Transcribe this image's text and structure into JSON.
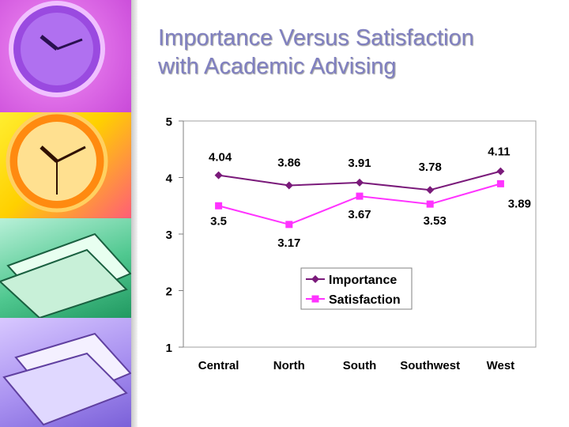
{
  "slide": {
    "title_line1": "Importance Versus Satisfaction",
    "title_line2": "with Academic Advising"
  },
  "colors": {
    "importance": "#7a1a7a",
    "satisfaction": "#ff33ff",
    "title": "#8080c0"
  },
  "chart_data": {
    "type": "line",
    "categories": [
      "Central",
      "North",
      "South",
      "Southwest",
      "West"
    ],
    "series": [
      {
        "name": "Importance",
        "values": [
          4.04,
          3.86,
          3.91,
          3.78,
          4.11
        ]
      },
      {
        "name": "Satisfaction",
        "values": [
          3.5,
          3.17,
          3.67,
          3.53,
          3.89
        ]
      }
    ],
    "ylim": [
      1,
      5
    ],
    "yticks": [
      1,
      2,
      3,
      4,
      5
    ],
    "legend": "center-right",
    "grid": false
  }
}
